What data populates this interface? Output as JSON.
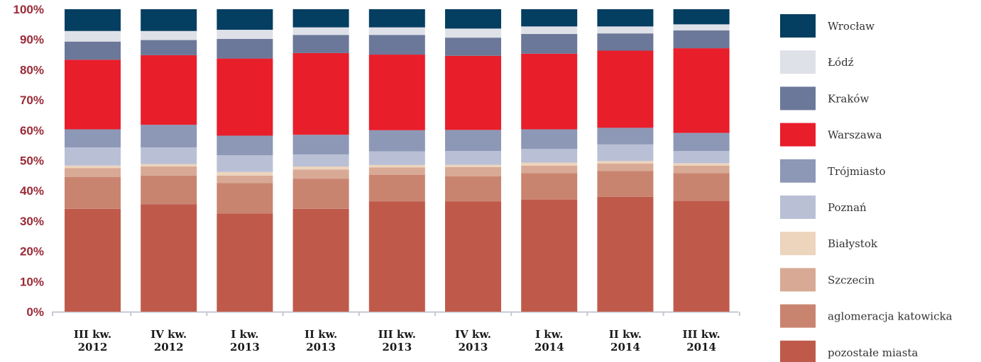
{
  "chart_data": {
    "type": "bar",
    "stacked": true,
    "percent": true,
    "categories": [
      [
        "III kw.",
        "2012"
      ],
      [
        "IV kw.",
        "2012"
      ],
      [
        "I kw.",
        "2013"
      ],
      [
        "II kw.",
        "2013"
      ],
      [
        "III kw.",
        "2013"
      ],
      [
        "IV kw.",
        "2013"
      ],
      [
        "I kw.",
        "2014"
      ],
      [
        "II kw.",
        "2014"
      ],
      [
        "III kw.",
        "2014"
      ]
    ],
    "yticks": [
      "0%",
      "10%",
      "20%",
      "30%",
      "40%",
      "50%",
      "60%",
      "70%",
      "80%",
      "90%",
      "100%"
    ],
    "ylim": [
      0,
      100
    ],
    "grid": false,
    "legend_position": "right",
    "series": [
      {
        "name": "pozostałe miasta",
        "color": "#bf5a4b",
        "values": [
          34,
          35.5,
          32.5,
          34,
          36.5,
          36.5,
          37,
          38,
          36.7
        ]
      },
      {
        "name": "aglomeracja katowicka",
        "color": "#c98470",
        "values": [
          10.5,
          9.5,
          10,
          10,
          8.7,
          8.3,
          8.8,
          8.5,
          9.1
        ]
      },
      {
        "name": "Szczecin",
        "color": "#d8a994",
        "values": [
          3,
          3,
          2.5,
          3,
          2.5,
          3,
          2.5,
          2.5,
          2.5
        ]
      },
      {
        "name": "Białystok",
        "color": "#ecd4bd",
        "values": [
          0.8,
          0.8,
          1.2,
          1,
          0.8,
          0.8,
          1,
          0.8,
          0.8
        ]
      },
      {
        "name": "Poznań",
        "color": "#b9c0d6",
        "values": [
          6,
          5.5,
          5.5,
          4,
          4.5,
          4.5,
          4.5,
          5.5,
          4
        ]
      },
      {
        "name": "Trójmiasto",
        "color": "#8d98b6",
        "values": [
          6,
          7.5,
          6.5,
          6.5,
          7,
          7,
          6.5,
          5.5,
          6
        ]
      },
      {
        "name": "Warszawa",
        "color": "#e81e2b",
        "values": [
          23,
          23,
          25.5,
          27,
          25,
          24.5,
          25,
          25.5,
          28
        ]
      },
      {
        "name": "Kraków",
        "color": "#6b7899",
        "values": [
          6,
          5,
          6.5,
          6,
          6.5,
          6,
          6.5,
          5.7,
          5.9
        ]
      },
      {
        "name": "Łódź",
        "color": "#dfe1e8",
        "values": [
          3.5,
          3,
          3,
          2.5,
          2.5,
          3,
          2.5,
          2.3,
          2
        ]
      },
      {
        "name": "Wrocław",
        "color": "#043e61",
        "values": [
          7.2,
          7.2,
          6.8,
          6,
          6,
          6.4,
          5.7,
          5.7,
          5
        ]
      }
    ]
  }
}
